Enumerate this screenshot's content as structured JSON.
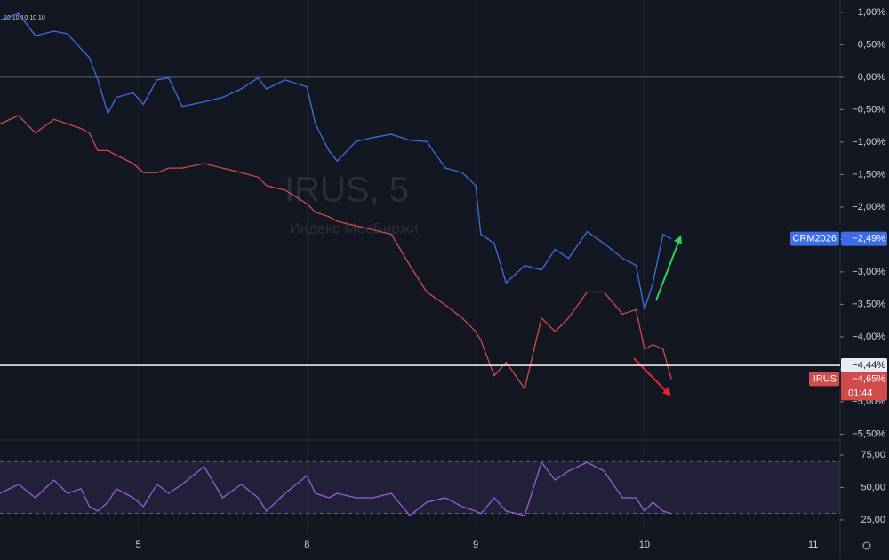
{
  "chart_data": [
    {
      "type": "line",
      "watermark": "IRUS, 5",
      "watermark_subtitle": "Индекс МосБиржи",
      "top_note": "10 10 10 10 10",
      "x": [
        0.18,
        0.29,
        0.39,
        0.5,
        0.58,
        0.66,
        0.71,
        0.76,
        0.82,
        0.87,
        0.97,
        1.03,
        1.11,
        1.18,
        1.26,
        1.39,
        1.5,
        1.61,
        1.71,
        1.76,
        1.87,
        2.0,
        2.05,
        2.13,
        2.18,
        2.29,
        2.39,
        2.5,
        2.61,
        2.71,
        2.82,
        2.92,
        3.0,
        3.03,
        3.11,
        3.18,
        3.29,
        3.39,
        3.47,
        3.55,
        3.66,
        3.76,
        3.87,
        3.95,
        4.0,
        4.05,
        4.11,
        4.16
      ],
      "xlim": [
        0.18,
        5.16
      ],
      "ylim": [
        -5.59,
        1.19
      ],
      "yticks": [
        {
          "value": 1.0,
          "label": "1,00%"
        },
        {
          "value": 0.5,
          "label": "0,50%"
        },
        {
          "value": 0,
          "label": "0,00%"
        },
        {
          "value": -0.5,
          "label": "−0,50%"
        },
        {
          "value": -1.0,
          "label": "−1,00%"
        },
        {
          "value": -1.5,
          "label": "−1,50%"
        },
        {
          "value": -2.0,
          "label": "−2,00%"
        },
        {
          "value": -2.5,
          "label": "−2,50%"
        },
        {
          "value": -3.0,
          "label": "−3,00%"
        },
        {
          "value": -3.5,
          "label": "−3,50%"
        },
        {
          "value": -4.0,
          "label": "−4,00%"
        },
        {
          "value": -4.5,
          "label": "−4,50%"
        },
        {
          "value": -5.0,
          "label": "−5,00%"
        },
        {
          "value": -5.5,
          "label": "−5,50%"
        }
      ],
      "zero_line": 0,
      "hline": {
        "value": -4.44,
        "label": "−4,44%"
      },
      "series": [
        {
          "name": "CRM2026",
          "color": "#3d6ee8",
          "last_label": "−2,49%",
          "values": [
            0.88,
            0.98,
            0.64,
            0.71,
            0.67,
            0.44,
            0.3,
            -0.04,
            -0.56,
            -0.31,
            -0.24,
            -0.42,
            -0.04,
            -0.01,
            -0.45,
            -0.38,
            -0.31,
            -0.18,
            -0.01,
            -0.18,
            -0.04,
            -0.15,
            -0.72,
            -1.13,
            -1.29,
            -0.99,
            -0.93,
            -0.88,
            -0.97,
            -0.99,
            -1.4,
            -1.47,
            -1.67,
            -2.42,
            -2.56,
            -3.17,
            -2.9,
            -2.97,
            -2.65,
            -2.79,
            -2.38,
            -2.56,
            -2.79,
            -2.9,
            -3.58,
            -3.17,
            -2.42,
            -2.49
          ]
        },
        {
          "name": "IRUS",
          "color": "#d24a4a",
          "last_label": "−4,65%",
          "countdown": "01:44",
          "values": [
            -0.72,
            -0.59,
            -0.86,
            -0.65,
            -0.72,
            -0.79,
            -0.86,
            -1.13,
            -1.13,
            -1.2,
            -1.33,
            -1.47,
            -1.47,
            -1.4,
            -1.4,
            -1.33,
            -1.4,
            -1.47,
            -1.54,
            -1.67,
            -1.74,
            -1.95,
            -2.08,
            -2.15,
            -2.22,
            -2.29,
            -2.35,
            -2.42,
            -2.9,
            -3.31,
            -3.51,
            -3.71,
            -3.92,
            -4.05,
            -4.6,
            -4.39,
            -4.8,
            -3.71,
            -3.92,
            -3.71,
            -3.31,
            -3.31,
            -3.65,
            -3.58,
            -4.19,
            -4.12,
            -4.19,
            -4.65
          ]
        }
      ]
    },
    {
      "type": "line",
      "x": [
        0.18,
        0.29,
        0.39,
        0.5,
        0.58,
        0.66,
        0.71,
        0.76,
        0.82,
        0.87,
        0.97,
        1.03,
        1.11,
        1.18,
        1.26,
        1.39,
        1.5,
        1.61,
        1.71,
        1.76,
        1.87,
        2.0,
        2.05,
        2.13,
        2.18,
        2.29,
        2.39,
        2.5,
        2.61,
        2.71,
        2.82,
        2.92,
        3.0,
        3.03,
        3.11,
        3.18,
        3.29,
        3.39,
        3.47,
        3.55,
        3.66,
        3.76,
        3.87,
        3.95,
        4.0,
        4.05,
        4.11,
        4.16
      ],
      "xlim": [
        0.18,
        5.16
      ],
      "xticks": [
        {
          "value": 1,
          "label": "5"
        },
        {
          "value": 2,
          "label": "8"
        },
        {
          "value": 3,
          "label": "9"
        },
        {
          "value": 4,
          "label": "10"
        },
        {
          "value": 5,
          "label": "11"
        }
      ],
      "ylim": [
        14.7,
        86.6
      ],
      "yticks": [
        {
          "value": 25,
          "label": "25,00"
        },
        {
          "value": 50,
          "label": "50,00"
        },
        {
          "value": 75,
          "label": "75,00"
        }
      ],
      "band": [
        30,
        70
      ],
      "series": [
        {
          "color": "#8e63d8",
          "values": [
            45.5,
            52.4,
            42.1,
            55.8,
            45.5,
            49.0,
            35.3,
            31.8,
            38.7,
            49.0,
            42.1,
            35.3,
            52.4,
            45.5,
            52.4,
            66.1,
            42.1,
            52.4,
            42.1,
            31.8,
            45.5,
            59.2,
            45.5,
            42.1,
            45.5,
            42.1,
            42.1,
            45.5,
            28.4,
            38.7,
            42.1,
            35.3,
            31.8,
            29.8,
            42.1,
            31.8,
            28.4,
            69.5,
            55.8,
            62.7,
            69.5,
            62.7,
            42.1,
            42.1,
            31.8,
            38.7,
            31.8,
            29.8
          ]
        }
      ]
    }
  ]
}
